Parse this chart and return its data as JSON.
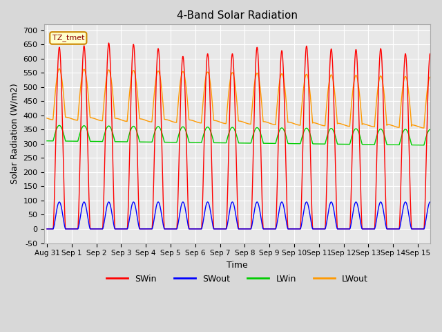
{
  "title": "4-Band Solar Radiation",
  "xlabel": "Time",
  "ylabel": "Solar Radiation (W/m2)",
  "ylim": [
    -50,
    720
  ],
  "background_color": "#d8d8d8",
  "plot_bg_color": "#e8e8e8",
  "grid_color": "#ffffff",
  "label_box": "TZ_tmet",
  "label_box_bg": "#ffffcc",
  "label_box_border": "#cc8800",
  "series_colors": {
    "SWin": "#ff0000",
    "SWout": "#0000ff",
    "LWin": "#00cc00",
    "LWout": "#ff9900"
  },
  "SWin_peaks": [
    640,
    645,
    655,
    650,
    635,
    608,
    617,
    617,
    640,
    628,
    644,
    634,
    632,
    635,
    617
  ],
  "SWout_peak": 95,
  "LWin_base": 310,
  "LWin_day_add": 55,
  "LWout_night": 390,
  "LWout_day_add": 175,
  "n_points": 1488,
  "total_days": 15.5
}
